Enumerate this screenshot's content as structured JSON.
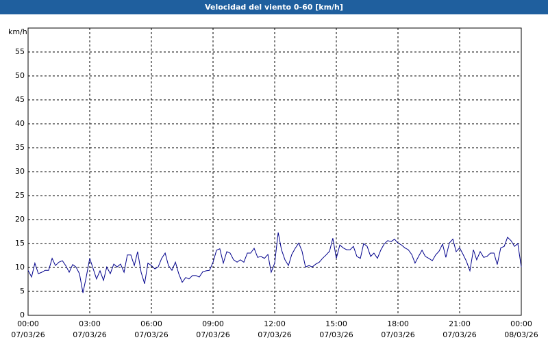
{
  "chart_data": {
    "type": "line",
    "title": "Velocidad del viento 0-60 [km/h]",
    "y_label": "km/h",
    "x": [
      0,
      0.17,
      0.33,
      0.5,
      0.67,
      0.83,
      1,
      1.17,
      1.33,
      1.5,
      1.67,
      1.83,
      2,
      2.17,
      2.33,
      2.5,
      2.67,
      2.83,
      3,
      3.17,
      3.33,
      3.5,
      3.67,
      3.83,
      4,
      4.17,
      4.33,
      4.5,
      4.67,
      4.83,
      5,
      5.17,
      5.33,
      5.5,
      5.67,
      5.83,
      6,
      6.17,
      6.33,
      6.5,
      6.67,
      6.83,
      7,
      7.17,
      7.33,
      7.5,
      7.67,
      7.83,
      8,
      8.17,
      8.33,
      8.5,
      8.67,
      8.83,
      9,
      9.17,
      9.33,
      9.5,
      9.67,
      9.83,
      10,
      10.17,
      10.33,
      10.5,
      10.67,
      10.83,
      11,
      11.17,
      11.33,
      11.5,
      11.67,
      11.83,
      12,
      12.17,
      12.33,
      12.5,
      12.67,
      12.83,
      13,
      13.17,
      13.33,
      13.5,
      13.67,
      13.83,
      14,
      14.17,
      14.33,
      14.5,
      14.67,
      14.83,
      15,
      15.17,
      15.33,
      15.5,
      15.67,
      15.83,
      16,
      16.17,
      16.33,
      16.5,
      16.67,
      16.83,
      17,
      17.17,
      17.33,
      17.5,
      17.67,
      17.83,
      18,
      18.17,
      18.33,
      18.5,
      18.67,
      18.83,
      19,
      19.17,
      19.33,
      19.5,
      19.67,
      19.83,
      20,
      20.17,
      20.33,
      20.5,
      20.67,
      20.83,
      21,
      21.17,
      21.33,
      21.5,
      21.67,
      21.83,
      22,
      22.17,
      22.33,
      22.5,
      22.67,
      22.83,
      23,
      23.17,
      23.33,
      23.5,
      23.67,
      23.83,
      24
    ],
    "series": [
      {
        "color": "#00008b",
        "values": [
          9.4,
          8,
          10.9,
          8.7,
          9,
          9.4,
          9.4,
          11.9,
          10.4,
          11.1,
          11.4,
          10.4,
          9,
          10.6,
          10.1,
          8.7,
          4.7,
          8,
          11.9,
          9.7,
          7.6,
          9.3,
          7.3,
          10.1,
          8.7,
          10.7,
          10.1,
          10.7,
          9,
          12.6,
          12.6,
          10.4,
          13.3,
          9,
          6.6,
          10.9,
          10.4,
          9.7,
          10.1,
          11.9,
          13,
          10.4,
          9.4,
          11.1,
          8.7,
          6.9,
          7.9,
          7.6,
          8.3,
          8.3,
          8,
          9.1,
          9.3,
          9.4,
          11.1,
          13.6,
          13.9,
          10.9,
          13.3,
          13,
          11.6,
          11.1,
          11.6,
          11.1,
          13,
          13,
          14,
          12.1,
          12.3,
          11.9,
          12.7,
          9,
          10.9,
          17.3,
          13.7,
          11.6,
          10.4,
          12.7,
          14,
          15.1,
          13.4,
          10.1,
          10.4,
          10.1,
          10.7,
          11.1,
          11.9,
          12.6,
          13.4,
          16.1,
          11.9,
          14.7,
          14.1,
          13.7,
          13.7,
          14.4,
          12.3,
          11.9,
          15,
          14.4,
          12.3,
          13,
          11.9,
          13.7,
          14.9,
          15.6,
          15.4,
          15.9,
          15.1,
          14.7,
          14.1,
          13.7,
          12.7,
          10.9,
          12.3,
          13.6,
          12.3,
          11.9,
          11.4,
          12.6,
          13.4,
          14.9,
          12.1,
          15.1,
          15.9,
          13.3,
          14.1,
          12.7,
          11.3,
          9.3,
          13.7,
          11.6,
          13.3,
          12.1,
          12.3,
          13,
          13,
          10.6,
          14.1,
          14.4,
          16.3,
          15.6,
          14.4,
          15,
          10.1
        ]
      }
    ],
    "xlim": [
      0,
      24
    ],
    "xticks": [
      {
        "value": 0,
        "label": "00:00",
        "date": "07/03/26"
      },
      {
        "value": 3,
        "label": "03:00",
        "date": "07/03/26"
      },
      {
        "value": 6,
        "label": "06:00",
        "date": "07/03/26"
      },
      {
        "value": 9,
        "label": "09:00",
        "date": "07/03/26"
      },
      {
        "value": 12,
        "label": "12:00",
        "date": "07/03/26"
      },
      {
        "value": 15,
        "label": "15:00",
        "date": "07/03/26"
      },
      {
        "value": 18,
        "label": "18:00",
        "date": "07/03/26"
      },
      {
        "value": 21,
        "label": "21:00",
        "date": "07/03/26"
      },
      {
        "value": 24,
        "label": "00:00",
        "date": "08/03/26"
      }
    ],
    "ylim": [
      0,
      60
    ],
    "yticks": [
      0,
      5,
      10,
      15,
      20,
      25,
      30,
      35,
      40,
      45,
      50,
      55
    ],
    "grid": true
  }
}
